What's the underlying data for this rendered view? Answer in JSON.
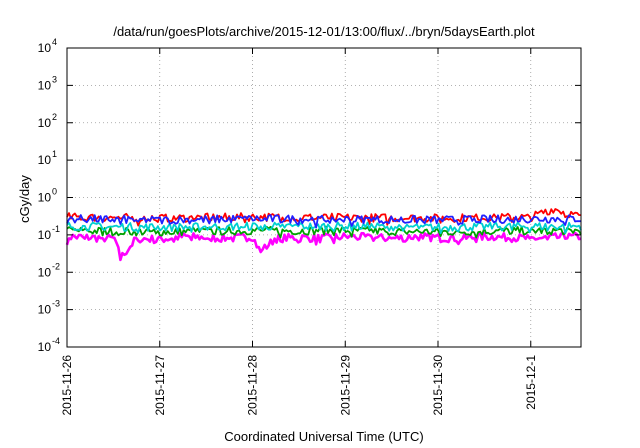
{
  "chart_data": {
    "type": "line",
    "title": "/data/run/goesPlots/archive/2015-12-01/13:00/flux/../bryn/5daysEarth.plot",
    "xlabel": "Coordinated Universal Time (UTC)",
    "ylabel": "cGy/day",
    "yscale": "log",
    "ylim": [
      0.0001,
      10000
    ],
    "y_ticks": [
      {
        "base": "10",
        "exp": "-4",
        "value": 0.0001
      },
      {
        "base": "10",
        "exp": "-3",
        "value": 0.001
      },
      {
        "base": "10",
        "exp": "-2",
        "value": 0.01
      },
      {
        "base": "10",
        "exp": "-1",
        "value": 0.1
      },
      {
        "base": "10",
        "exp": "0",
        "value": 1
      },
      {
        "base": "10",
        "exp": "1",
        "value": 10
      },
      {
        "base": "10",
        "exp": "2",
        "value": 100
      },
      {
        "base": "10",
        "exp": "3",
        "value": 1000
      },
      {
        "base": "10",
        "exp": "4",
        "value": 10000
      }
    ],
    "xlim": [
      "2015-11-26 00:00",
      "2015-12-01 13:00"
    ],
    "x_ticks": [
      "2015-11-26",
      "2015-11-27",
      "2015-11-28",
      "2015-11-29",
      "2015-11-30",
      "2015-12-1"
    ],
    "grid": true,
    "legend": "none",
    "series": [
      {
        "color": "#ff00ff",
        "x": [
          "2015-11-26 00:00",
          "2015-11-26 06:00",
          "2015-11-26 12:00",
          "2015-11-26 14:00",
          "2015-11-26 18:00",
          "2015-11-27 00:00",
          "2015-11-27 06:00",
          "2015-11-27 12:00",
          "2015-11-27 18:00",
          "2015-11-28 00:00",
          "2015-11-28 02:00",
          "2015-11-28 06:00",
          "2015-11-28 12:00",
          "2015-11-28 18:00",
          "2015-11-29 00:00",
          "2015-11-29 06:00",
          "2015-11-29 12:00",
          "2015-11-29 18:00",
          "2015-11-30 00:00",
          "2015-11-30 06:00",
          "2015-11-30 12:00",
          "2015-11-30 18:00",
          "2015-12-01 00:00",
          "2015-12-01 06:00",
          "2015-12-01 13:00"
        ],
        "values": [
          0.09,
          0.085,
          0.08,
          0.025,
          0.08,
          0.075,
          0.09,
          0.085,
          0.08,
          0.09,
          0.035,
          0.08,
          0.085,
          0.08,
          0.09,
          0.085,
          0.08,
          0.09,
          0.085,
          0.08,
          0.09,
          0.085,
          0.08,
          0.085,
          0.09
        ]
      },
      {
        "color": "#00a000",
        "x": [
          "2015-11-26 00:00",
          "2015-11-27 00:00",
          "2015-11-28 00:00",
          "2015-11-29 00:00",
          "2015-11-30 00:00",
          "2015-12-01 00:00",
          "2015-12-01 13:00"
        ],
        "values": [
          0.13,
          0.12,
          0.13,
          0.13,
          0.12,
          0.13,
          0.13
        ]
      },
      {
        "color": "#ff0000",
        "x": [
          "2015-11-26 00:00",
          "2015-11-27 00:00",
          "2015-11-28 00:00",
          "2015-11-29 00:00",
          "2015-11-30 00:00",
          "2015-12-01 00:00",
          "2015-12-01 06:00",
          "2015-12-01 13:00"
        ],
        "values": [
          0.3,
          0.28,
          0.3,
          0.29,
          0.28,
          0.3,
          0.5,
          0.3
        ]
      },
      {
        "color": "#00d0d0",
        "x": [
          "2015-11-26 00:00",
          "2015-11-27 00:00",
          "2015-11-28 00:00",
          "2015-11-29 00:00",
          "2015-11-30 00:00",
          "2015-12-01 00:00",
          "2015-12-01 13:00"
        ],
        "values": [
          0.17,
          0.16,
          0.17,
          0.17,
          0.16,
          0.17,
          0.17
        ]
      },
      {
        "color": "#2020ff",
        "x": [
          "2015-11-26 00:00",
          "2015-11-27 00:00",
          "2015-11-28 00:00",
          "2015-11-29 00:00",
          "2015-11-30 00:00",
          "2015-12-01 00:00",
          "2015-12-01 13:00"
        ],
        "values": [
          0.27,
          0.25,
          0.27,
          0.26,
          0.25,
          0.27,
          0.27
        ]
      }
    ]
  }
}
